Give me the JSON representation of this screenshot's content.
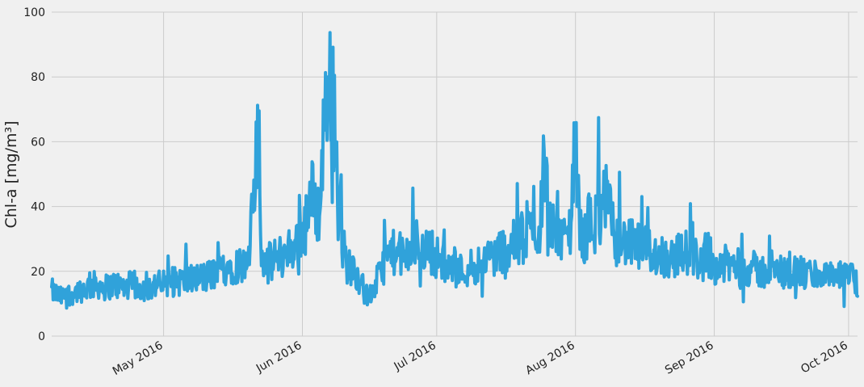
{
  "chart_data": {
    "type": "line",
    "title": "",
    "xlabel": "",
    "ylabel": "Chl-a [mg/m³]",
    "xlim": [
      "2016-04-06",
      "2016-10-03"
    ],
    "ylim": [
      0,
      100
    ],
    "yticks": [
      0,
      20,
      40,
      60,
      80,
      100
    ],
    "xticks": [
      {
        "date": "2016-05-01",
        "label": "May 2016"
      },
      {
        "date": "2016-06-01",
        "label": "Jun 2016"
      },
      {
        "date": "2016-07-01",
        "label": "Jul 2016"
      },
      {
        "date": "2016-08-01",
        "label": "Aug 2016"
      },
      {
        "date": "2016-09-01",
        "label": "Sep 2016"
      },
      {
        "date": "2016-10-01",
        "label": "Oct 2016"
      }
    ],
    "grid": true,
    "series": [
      {
        "color": "#30a2da",
        "x": [
          "2016-04-06",
          "2016-04-08",
          "2016-04-10",
          "2016-04-12",
          "2016-04-14",
          "2016-04-16",
          "2016-04-18",
          "2016-04-20",
          "2016-04-22",
          "2016-04-24",
          "2016-04-26",
          "2016-04-28",
          "2016-04-30",
          "2016-05-02",
          "2016-05-04",
          "2016-05-06",
          "2016-05-08",
          "2016-05-10",
          "2016-05-12",
          "2016-05-14",
          "2016-05-16",
          "2016-05-18",
          "2016-05-20",
          "2016-05-22",
          "2016-05-23",
          "2016-05-24",
          "2016-05-26",
          "2016-05-28",
          "2016-05-30",
          "2016-06-01",
          "2016-06-02",
          "2016-06-03",
          "2016-06-04",
          "2016-06-05",
          "2016-06-06",
          "2016-06-07",
          "2016-06-08",
          "2016-06-09",
          "2016-06-10",
          "2016-06-11",
          "2016-06-12",
          "2016-06-13",
          "2016-06-14",
          "2016-06-15",
          "2016-06-16",
          "2016-06-18",
          "2016-06-20",
          "2016-06-22",
          "2016-06-24",
          "2016-06-26",
          "2016-06-27",
          "2016-06-28",
          "2016-06-30",
          "2016-07-02",
          "2016-07-04",
          "2016-07-06",
          "2016-07-08",
          "2016-07-10",
          "2016-07-12",
          "2016-07-14",
          "2016-07-16",
          "2016-07-18",
          "2016-07-20",
          "2016-07-22",
          "2016-07-24",
          "2016-07-25",
          "2016-07-26",
          "2016-07-27",
          "2016-07-28",
          "2016-07-29",
          "2016-07-30",
          "2016-07-31",
          "2016-08-01",
          "2016-08-02",
          "2016-08-03",
          "2016-08-04",
          "2016-08-05",
          "2016-08-06",
          "2016-08-07",
          "2016-08-08",
          "2016-08-09",
          "2016-08-10",
          "2016-08-12",
          "2016-08-14",
          "2016-08-16",
          "2016-08-18",
          "2016-08-20",
          "2016-08-22",
          "2016-08-24",
          "2016-08-26",
          "2016-08-28",
          "2016-08-30",
          "2016-09-01",
          "2016-09-03",
          "2016-09-05",
          "2016-09-07",
          "2016-09-09",
          "2016-09-11",
          "2016-09-13",
          "2016-09-15",
          "2016-09-17",
          "2016-09-19",
          "2016-09-21",
          "2016-09-23",
          "2016-09-25",
          "2016-09-27",
          "2016-09-29",
          "2016-10-01",
          "2016-10-03"
        ],
        "y": [
          14,
          12,
          13,
          14,
          15,
          16,
          15,
          16,
          15,
          16,
          15,
          15,
          16,
          16,
          17,
          17,
          18,
          18,
          19,
          21,
          22,
          22,
          22,
          60,
          23,
          22,
          24,
          25,
          28,
          32,
          35,
          44,
          40,
          38,
          72,
          85,
          70,
          38,
          28,
          22,
          21,
          20,
          17,
          13,
          12,
          18,
          25,
          26,
          24,
          27,
          30,
          27,
          26,
          23,
          21,
          20,
          21,
          22,
          24,
          25,
          27,
          28,
          30,
          32,
          33,
          58,
          34,
          35,
          36,
          28,
          30,
          36,
          60,
          32,
          30,
          35,
          33,
          38,
          40,
          42,
          35,
          30,
          29,
          28,
          27,
          26,
          25,
          24,
          25,
          26,
          24,
          23,
          22,
          22,
          22,
          21,
          21,
          20,
          20,
          20,
          20,
          20,
          19,
          19,
          19,
          18,
          18,
          18,
          16
        ]
      }
    ]
  }
}
